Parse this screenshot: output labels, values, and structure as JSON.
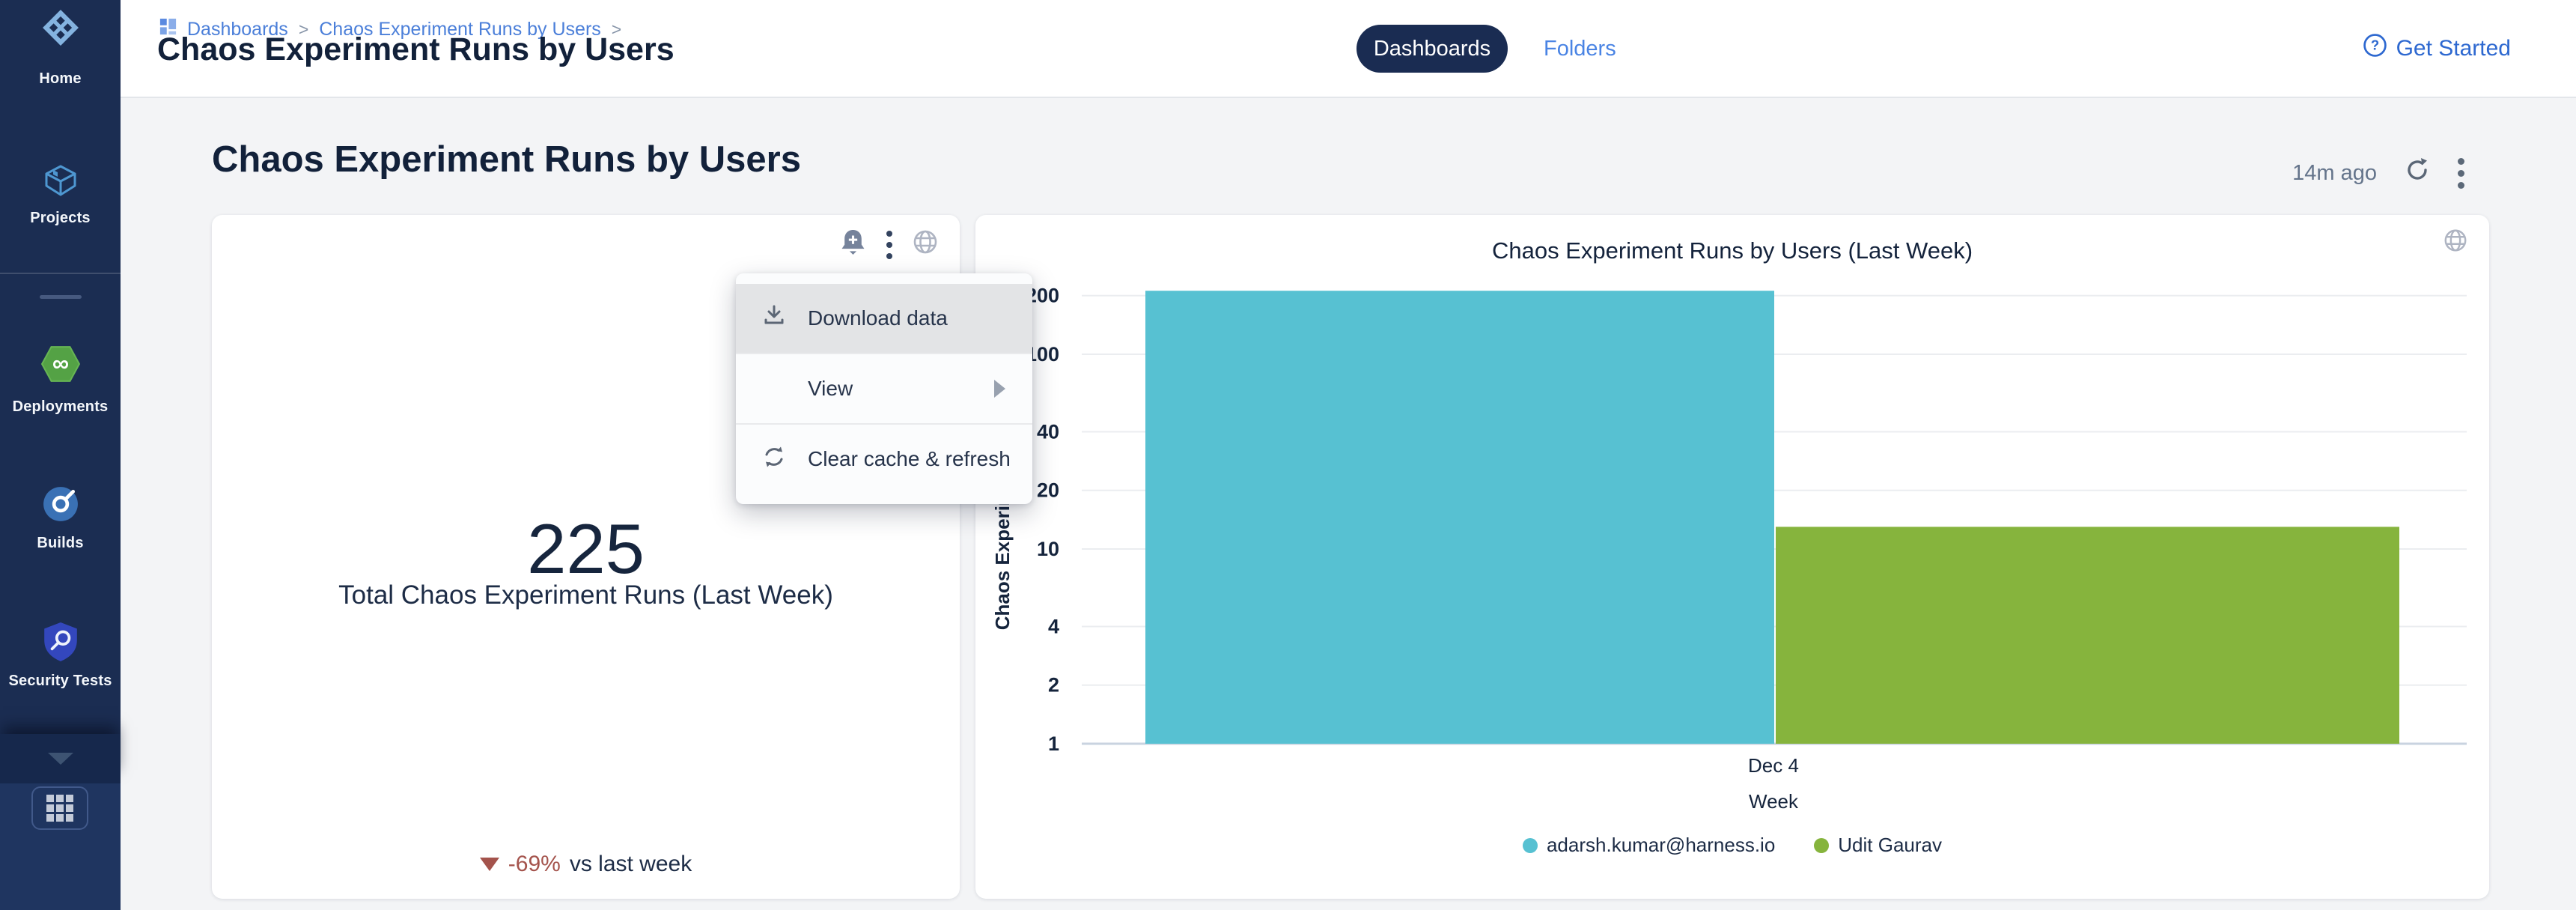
{
  "colors": {
    "sidebar_navy": "#1b2d52",
    "link_blue": "#4b7fd9",
    "accent_blue": "#2d68d0",
    "teal": "#57c1d2",
    "green": "#86b43d",
    "delta_negative": "#a4534c",
    "title_navy": "#12213a"
  },
  "sidebar": {
    "items": [
      {
        "label": "Home",
        "icon": "harness-logo"
      },
      {
        "label": "Projects",
        "icon": "cube-icon"
      },
      {
        "label": "Deployments",
        "icon": "cd-infinity-icon"
      },
      {
        "label": "Builds",
        "icon": "ci-circle-icon"
      },
      {
        "label": "Security Tests",
        "icon": "shield-magnifier-icon"
      }
    ],
    "footer": {
      "collapse_icon": "chevron-down",
      "module_picker_icon": "grid-9-dots"
    }
  },
  "topbar": {
    "breadcrumb": {
      "icon": "dashboards-grid",
      "items": [
        "Dashboards",
        "Chaos Experiment Runs by Users"
      ]
    },
    "page_title": "Chaos Experiment Runs by Users",
    "tabs": [
      {
        "label": "Dashboards",
        "active": true
      },
      {
        "label": "Folders",
        "active": false
      }
    ],
    "get_started": {
      "label": "Get Started",
      "icon": "help-circle"
    }
  },
  "content": {
    "title": "Chaos Experiment Runs by Users",
    "refreshed": "14m ago"
  },
  "stat_card": {
    "value": "225",
    "label": "Total Chaos Experiment Runs (Last Week)",
    "delta": "-69%",
    "delta_direction": "down",
    "delta_suffix": "vs last week",
    "header_icons": [
      "bell-plus",
      "kebab-menu",
      "globe"
    ]
  },
  "tile_menu": {
    "items": [
      {
        "label": "Download data",
        "icon": "download",
        "highlighted": true
      },
      {
        "label": "View",
        "icon": "",
        "submenu": true
      },
      {
        "label": "Clear cache & refresh",
        "icon": "cycle"
      }
    ]
  },
  "chart_data": {
    "type": "bar",
    "title": "Chaos Experiment Runs by Users (Last Week)",
    "x": [
      "Dec 4"
    ],
    "xlabel": "Week",
    "ylabel": "Chaos Experiment Runs",
    "yscale": "log",
    "ylim": [
      1,
      250
    ],
    "yticks": [
      200,
      100,
      40,
      20,
      10,
      4,
      2,
      1
    ],
    "series": [
      {
        "name": "adarsh.kumar@harness.io",
        "values": [
          212
        ],
        "color": "#57c1d2"
      },
      {
        "name": "Udit Gaurav",
        "values": [
          13
        ],
        "color": "#86b43d"
      }
    ],
    "total": 225,
    "grid": true,
    "legend_position": "bottom"
  }
}
